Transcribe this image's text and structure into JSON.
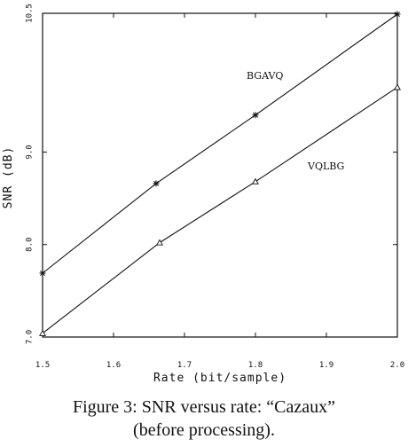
{
  "chart_data": {
    "type": "line",
    "title": "",
    "xlabel": "Rate (bit/sample)",
    "ylabel": "SNR (dB)",
    "xlim": [
      1.5,
      2.0
    ],
    "ylim": [
      7.0,
      10.5
    ],
    "x_ticks": [
      1.5,
      1.6,
      1.7,
      1.8,
      1.9,
      2.0
    ],
    "x_tick_labels": [
      "1.5",
      "1.6",
      "1.7",
      "1.8",
      "1.9",
      "2.0"
    ],
    "y_ticks": [
      7.0,
      8.0,
      9.0,
      10.5
    ],
    "y_tick_labels": [
      "7.0",
      "8.0",
      "9.0",
      "10.5"
    ],
    "grid": false,
    "legend": "none",
    "series": [
      {
        "name": "BGAVQ",
        "marker": "star",
        "x": [
          1.5,
          1.66,
          1.8,
          2.0
        ],
        "y": [
          7.69,
          8.66,
          9.4,
          10.49
        ]
      },
      {
        "name": "VQLBG",
        "marker": "triangle",
        "x": [
          1.5,
          1.665,
          1.8,
          2.0
        ],
        "y": [
          7.04,
          8.02,
          8.68,
          9.7
        ]
      }
    ]
  },
  "caption": {
    "line1": "Figure 3: SNR versus rate: “Cazaux”",
    "line2": "(before processing)."
  }
}
